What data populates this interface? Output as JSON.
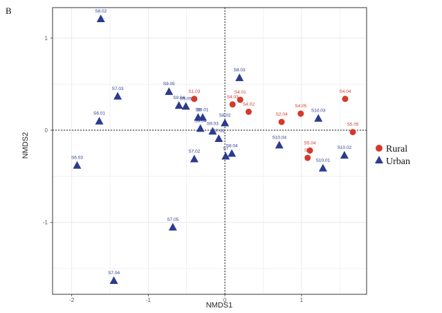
{
  "panel_letter": "B",
  "colors": {
    "rural": "#d33a2c",
    "urban": "#2b3b8e",
    "grid": "#e5e5e5",
    "frame": "#333333"
  },
  "chart_data": {
    "type": "scatter",
    "title": "",
    "xlabel": "NMDS1",
    "ylabel": "NMDS2",
    "xlim": [
      -2.25,
      1.85
    ],
    "ylim": [
      -1.78,
      1.33
    ],
    "xticks": [
      -2,
      -1,
      0,
      1
    ],
    "yticks": [
      -1,
      0,
      1
    ],
    "grid": true,
    "legend_position": "right",
    "reference_lines": {
      "x": 0,
      "y": 0,
      "style": "dashed"
    },
    "series": [
      {
        "name": "Rural",
        "marker": "circle",
        "color": "#d33a2c",
        "points": [
          {
            "label": "S1.03",
            "x": -0.4,
            "y": 0.34
          },
          {
            "label": "S4.03",
            "x": 0.1,
            "y": 0.28
          },
          {
            "label": "S4.01",
            "x": 0.2,
            "y": 0.33
          },
          {
            "label": "S4.02",
            "x": 0.31,
            "y": 0.2
          },
          {
            "label": "S2.04",
            "x": 0.74,
            "y": 0.09
          },
          {
            "label": "S4.05",
            "x": 0.99,
            "y": 0.18
          },
          {
            "label": "S4.04",
            "x": 1.57,
            "y": 0.34
          },
          {
            "label": "S5.05",
            "x": 1.67,
            "y": -0.02
          },
          {
            "label": "S5.04",
            "x": 1.11,
            "y": -0.22
          },
          {
            "label": "S5.",
            "x": 1.08,
            "y": -0.3
          }
        ]
      },
      {
        "name": "Urban",
        "marker": "triangle",
        "color": "#2b3b8e",
        "points": [
          {
            "label": "S8.02",
            "x": -1.62,
            "y": 1.21
          },
          {
            "label": "S7.03",
            "x": -1.4,
            "y": 0.37
          },
          {
            "label": "S9.05",
            "x": -0.73,
            "y": 0.42
          },
          {
            "label": "S9.04",
            "x": -0.6,
            "y": 0.27
          },
          {
            "label": "S9.05",
            "x": -0.51,
            "y": 0.26
          },
          {
            "label": "S6.01",
            "x": -1.64,
            "y": 0.1
          },
          {
            "label": "S8.03",
            "x": 0.19,
            "y": 0.57
          },
          {
            "label": "S9.01",
            "x": -0.29,
            "y": 0.14
          },
          {
            "label": "S6",
            "x": -0.35,
            "y": 0.14
          },
          {
            "label": "S9.03",
            "x": -0.16,
            "y": -0.01
          },
          {
            "label": "S8.04",
            "x": -0.32,
            "y": 0.02
          },
          {
            "label": "S8.02",
            "x": 0.0,
            "y": 0.08
          },
          {
            "label": "S7.01",
            "x": -0.08,
            "y": -0.09
          },
          {
            "label": "S7.02",
            "x": -0.4,
            "y": -0.31
          },
          {
            "label": "S8.04",
            "x": 0.09,
            "y": -0.25
          },
          {
            "label": "S7",
            "x": 0.01,
            "y": -0.28
          },
          {
            "label": "S10.03",
            "x": 1.22,
            "y": 0.13
          },
          {
            "label": "S10.04",
            "x": 0.71,
            "y": -0.16
          },
          {
            "label": "S10.02",
            "x": 1.56,
            "y": -0.27
          },
          {
            "label": "S10.01",
            "x": 1.28,
            "y": -0.41
          },
          {
            "label": "S6.03",
            "x": -1.93,
            "y": -0.38
          },
          {
            "label": "S7.05",
            "x": -0.68,
            "y": -1.05
          },
          {
            "label": "S7.04",
            "x": -1.45,
            "y": -1.63
          }
        ]
      }
    ]
  }
}
